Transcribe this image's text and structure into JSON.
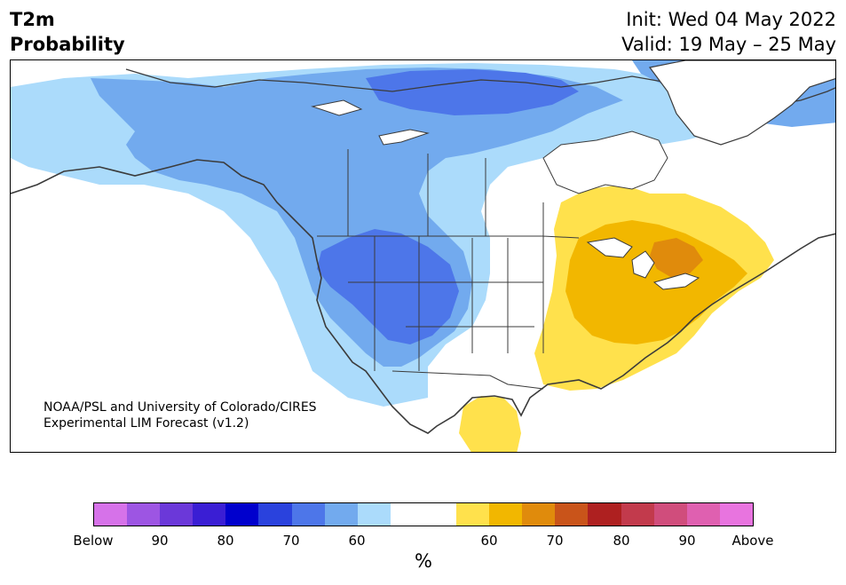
{
  "header": {
    "title_line1": "T2m",
    "title_line2": "Probability",
    "init": "Init: Wed 04 May 2022",
    "valid": "Valid: 19 May – 25 May"
  },
  "credit": {
    "line1": "NOAA/PSL and University of Colorado/CIRES",
    "line2": "Experimental LIM Forecast (v1.2)"
  },
  "colorbar": {
    "colors": [
      "#d672e9",
      "#9d55e3",
      "#6b38d9",
      "#3a1ed4",
      "#0000cd",
      "#2a42dd",
      "#4d76e9",
      "#72aaee",
      "#abdbfb",
      "#ffffff",
      "#ffffff",
      "#ffe14c",
      "#f2b700",
      "#e08b0c",
      "#c9541a",
      "#ae2020",
      "#c23a4c",
      "#d04d7c",
      "#df60b0",
      "#e874df"
    ],
    "tick_labels": [
      "Below",
      "90",
      "80",
      "70",
      "60",
      "60",
      "70",
      "80",
      "90",
      "Above"
    ],
    "unit": "%"
  },
  "map": {
    "categories": {
      "below_50": "#abdbfb",
      "below_60": "#72aaee",
      "below_70": "#4d76e9",
      "above_50": "#ffe14c",
      "above_60": "#f2b700",
      "above_70": "#e08b0c",
      "coast": "#3b3b3b"
    }
  }
}
